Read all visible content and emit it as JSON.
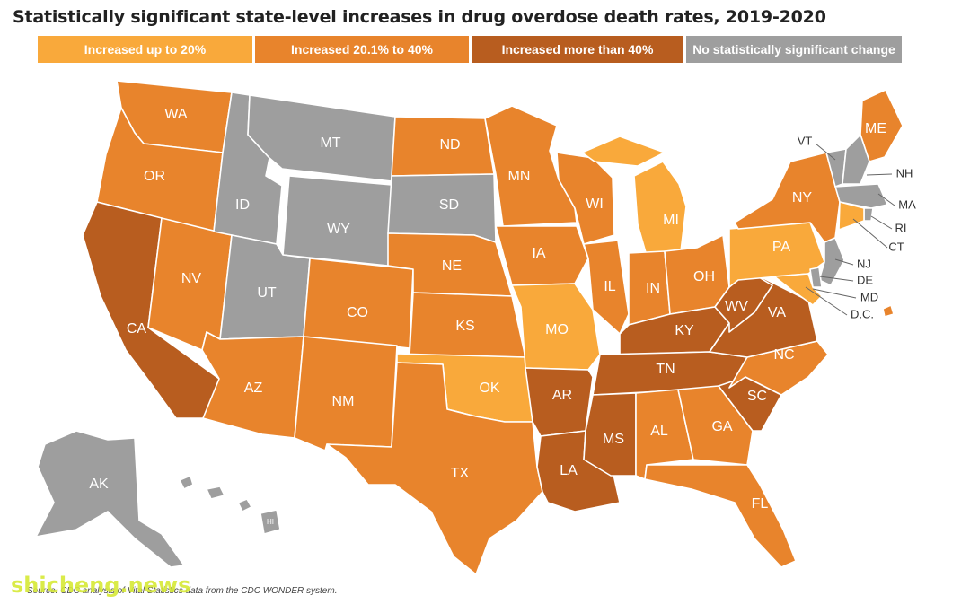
{
  "title": "Statistically significant state-level increases in drug overdose death rates, 2019-2020",
  "legend": [
    {
      "label": "Increased up to 20%",
      "color": "#f9a93b"
    },
    {
      "label": "Increased 20.1% to 40%",
      "color": "#e8842c"
    },
    {
      "label": "Increased more than 40%",
      "color": "#b85d1f"
    },
    {
      "label": "No statistically significant change",
      "color": "#9e9e9e"
    }
  ],
  "states": [
    {
      "abbr": "WA",
      "category": 1
    },
    {
      "abbr": "OR",
      "category": 1
    },
    {
      "abbr": "CA",
      "category": 2
    },
    {
      "abbr": "NV",
      "category": 1
    },
    {
      "abbr": "ID",
      "category": 3
    },
    {
      "abbr": "MT",
      "category": 3
    },
    {
      "abbr": "WY",
      "category": 3
    },
    {
      "abbr": "UT",
      "category": 3
    },
    {
      "abbr": "AZ",
      "category": 1
    },
    {
      "abbr": "CO",
      "category": 1
    },
    {
      "abbr": "NM",
      "category": 1
    },
    {
      "abbr": "ND",
      "category": 1
    },
    {
      "abbr": "SD",
      "category": 3
    },
    {
      "abbr": "NE",
      "category": 1
    },
    {
      "abbr": "KS",
      "category": 1
    },
    {
      "abbr": "OK",
      "category": 0
    },
    {
      "abbr": "TX",
      "category": 1
    },
    {
      "abbr": "MN",
      "category": 1
    },
    {
      "abbr": "IA",
      "category": 1
    },
    {
      "abbr": "MO",
      "category": 0
    },
    {
      "abbr": "AR",
      "category": 2
    },
    {
      "abbr": "LA",
      "category": 2
    },
    {
      "abbr": "WI",
      "category": 1
    },
    {
      "abbr": "IL",
      "category": 1
    },
    {
      "abbr": "MI",
      "category": 0
    },
    {
      "abbr": "IN",
      "category": 1
    },
    {
      "abbr": "OH",
      "category": 1
    },
    {
      "abbr": "KY",
      "category": 2
    },
    {
      "abbr": "TN",
      "category": 2
    },
    {
      "abbr": "MS",
      "category": 2
    },
    {
      "abbr": "AL",
      "category": 1
    },
    {
      "abbr": "GA",
      "category": 1
    },
    {
      "abbr": "FL",
      "category": 1
    },
    {
      "abbr": "SC",
      "category": 2
    },
    {
      "abbr": "NC",
      "category": 1
    },
    {
      "abbr": "VA",
      "category": 2
    },
    {
      "abbr": "WV",
      "category": 2
    },
    {
      "abbr": "PA",
      "category": 0
    },
    {
      "abbr": "NY",
      "category": 1
    },
    {
      "abbr": "ME",
      "category": 1
    },
    {
      "abbr": "VT",
      "category": 3
    },
    {
      "abbr": "NH",
      "category": 3
    },
    {
      "abbr": "MA",
      "category": 3
    },
    {
      "abbr": "RI",
      "category": 3
    },
    {
      "abbr": "CT",
      "category": 0
    },
    {
      "abbr": "NJ",
      "category": 3
    },
    {
      "abbr": "DE",
      "category": 3
    },
    {
      "abbr": "MD",
      "category": 0
    },
    {
      "abbr": "D.C.",
      "category": 1
    },
    {
      "abbr": "AK",
      "category": 3
    },
    {
      "abbr": "HI",
      "category": 3
    }
  ],
  "source": "Source: CDC analysis of Vital Statistics data from the CDC WONDER system.",
  "watermark": "shicheng.news"
}
